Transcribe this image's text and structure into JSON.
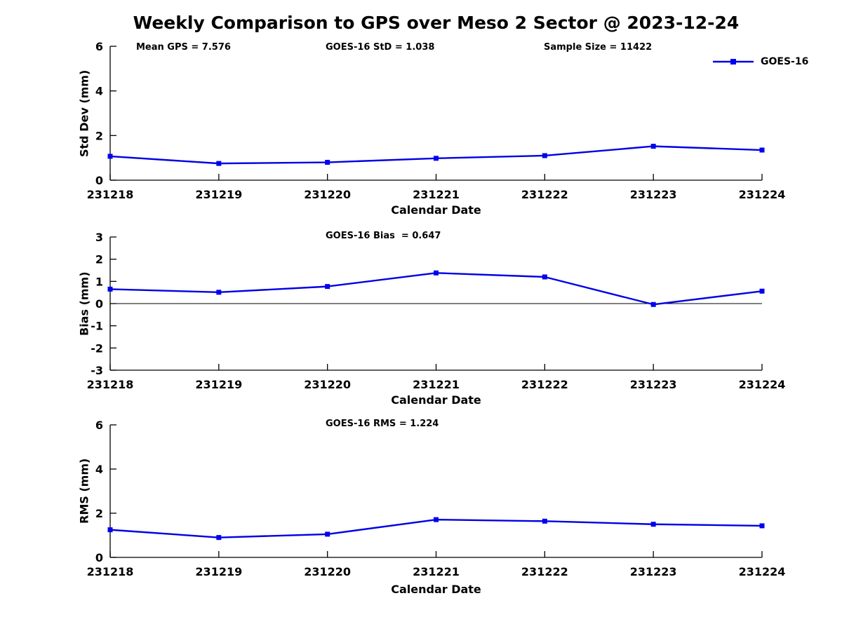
{
  "figure": {
    "title": "Weekly Comparison to GPS over Meso 2 Sector @ 2023-12-24",
    "background": "#ffffff"
  },
  "legend": {
    "label": "GOES-16"
  },
  "colors": {
    "line": "#0000e6",
    "marker": "#0000f0",
    "axis": "#000000",
    "zero_line": "#000000",
    "text": "#000000"
  },
  "chart_data": [
    {
      "type": "line",
      "ylabel": "Std Dev (mm)",
      "xlabel": "Calendar Date",
      "annotations": [
        {
          "text": "Mean GPS = 7.576"
        },
        {
          "text": "GOES-16 StD = 1.038"
        },
        {
          "text": "Sample Size = 11422"
        }
      ],
      "categories": [
        "231218",
        "231219",
        "231220",
        "231221",
        "231222",
        "231223",
        "231224"
      ],
      "series": [
        {
          "name": "GOES-16",
          "values": [
            1.07,
            0.75,
            0.8,
            0.98,
            1.1,
            1.52,
            1.35
          ]
        }
      ],
      "ylim": [
        0,
        6
      ],
      "yticks": [
        0,
        2,
        4,
        6
      ],
      "zero_line": false,
      "grid": false,
      "legend_position": "top-right"
    },
    {
      "type": "line",
      "ylabel": "Bias (mm)",
      "xlabel": "Calendar Date",
      "annotations": [
        {
          "text": "GOES-16 Bias  = 0.647"
        }
      ],
      "categories": [
        "231218",
        "231219",
        "231220",
        "231221",
        "231222",
        "231223",
        "231224"
      ],
      "series": [
        {
          "name": "GOES-16",
          "values": [
            0.65,
            0.51,
            0.77,
            1.38,
            1.2,
            -0.04,
            0.56
          ]
        }
      ],
      "ylim": [
        -3,
        3
      ],
      "yticks": [
        -3,
        -2,
        -1,
        0,
        1,
        2,
        3
      ],
      "zero_line": true,
      "grid": false
    },
    {
      "type": "line",
      "ylabel": "RMS (mm)",
      "xlabel": "Calendar Date",
      "annotations": [
        {
          "text": "GOES-16 RMS = 1.224"
        }
      ],
      "categories": [
        "231218",
        "231219",
        "231220",
        "231221",
        "231222",
        "231223",
        "231224"
      ],
      "series": [
        {
          "name": "GOES-16",
          "values": [
            1.25,
            0.9,
            1.05,
            1.71,
            1.64,
            1.5,
            1.43
          ]
        }
      ],
      "ylim": [
        0,
        6
      ],
      "yticks": [
        0,
        2,
        4,
        6
      ],
      "zero_line": false,
      "grid": false
    }
  ]
}
